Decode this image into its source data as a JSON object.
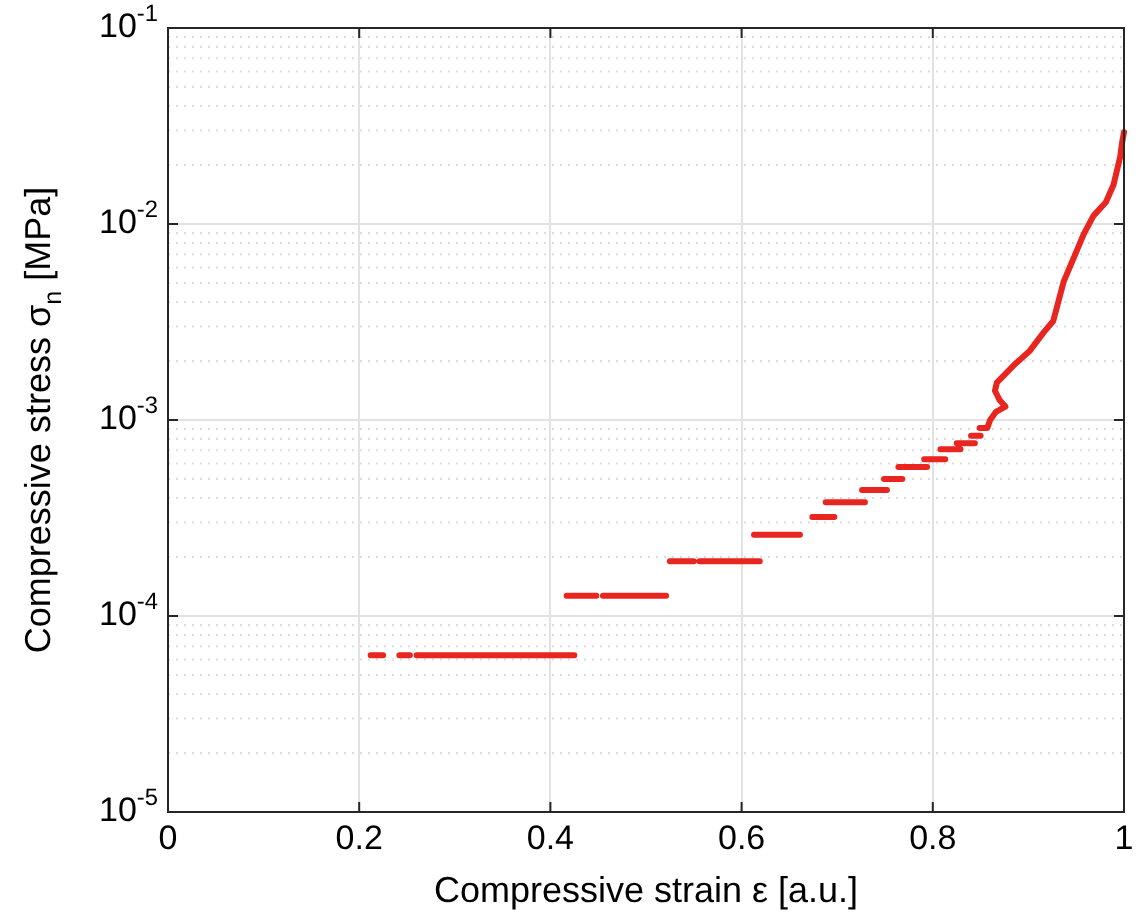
{
  "chart_data": {
    "type": "line",
    "xlabel": "Compressive strain ε [a.u.]",
    "ylabel": "Compressive stress σ$_{n}$ [MPa]",
    "log": "y",
    "grid": true,
    "legend": false,
    "marker": "none",
    "line_style": "solid",
    "xlim": [
      0,
      1
    ],
    "xticks": [
      0,
      0.2,
      0.4,
      0.6,
      0.8,
      1
    ],
    "ylim": [
      1e-05,
      0.1
    ],
    "yticks": [
      {
        "value": 1e-05,
        "label": "10$^{-5}$"
      },
      {
        "value": 0.0001,
        "label": "10$^{-4}$"
      },
      {
        "value": 0.001,
        "label": "10$^{-3}$"
      },
      {
        "value": 0.01,
        "label": "10$^{-2}$"
      },
      {
        "value": 0.1,
        "label": "10$^{-1}$"
      }
    ],
    "series": [
      {
        "color": "#e8251f",
        "x": [
          0.212,
          0.225,
          0.234,
          0.242,
          0.253,
          0.256,
          0.26,
          0.425,
          0.421,
          0.417,
          0.448,
          0.451,
          0.455,
          0.521,
          0.523,
          0.525,
          0.55,
          0.553,
          0.556,
          0.619,
          0.616,
          0.613,
          0.661,
          0.667,
          0.674,
          0.697,
          0.692,
          0.688,
          0.729,
          0.727,
          0.726,
          0.752,
          0.75,
          0.749,
          0.768,
          0.766,
          0.764,
          0.794,
          0.792,
          0.791,
          0.813,
          0.81,
          0.808,
          0.829,
          0.827,
          0.825,
          0.844,
          0.842,
          0.84,
          0.85,
          0.8495,
          0.849,
          0.857,
          0.86,
          0.866,
          0.876,
          0.87,
          0.865,
          0.867,
          0.887,
          0.901,
          0.916,
          0.926,
          0.937,
          0.958,
          0.968,
          0.981,
          0.989,
          0.996,
          0.998,
          1.0
        ],
        "values": [
          6.3e-05,
          6.3e-05,
          null,
          6.3e-05,
          6.3e-05,
          null,
          6.3e-05,
          6.3e-05,
          null,
          0.000127,
          0.000127,
          null,
          0.000127,
          0.000127,
          null,
          0.00019,
          0.00019,
          null,
          0.00019,
          0.00019,
          null,
          0.00026,
          0.00026,
          null,
          0.00032,
          0.00032,
          null,
          0.00038,
          0.00038,
          null,
          0.00044,
          0.00044,
          null,
          0.0005,
          0.0005,
          null,
          0.000575,
          0.000575,
          null,
          0.00063,
          0.00063,
          null,
          0.00071,
          0.00071,
          null,
          0.00076,
          0.00076,
          null,
          0.00083,
          0.00083,
          null,
          0.00091,
          0.00091,
          0.001,
          0.0011,
          0.00117,
          0.00126,
          0.00141,
          0.00155,
          0.00195,
          0.00224,
          0.0028,
          0.0032,
          0.0051,
          0.0089,
          0.011,
          0.0129,
          0.0158,
          0.022,
          0.026,
          0.0295
        ]
      }
    ]
  }
}
